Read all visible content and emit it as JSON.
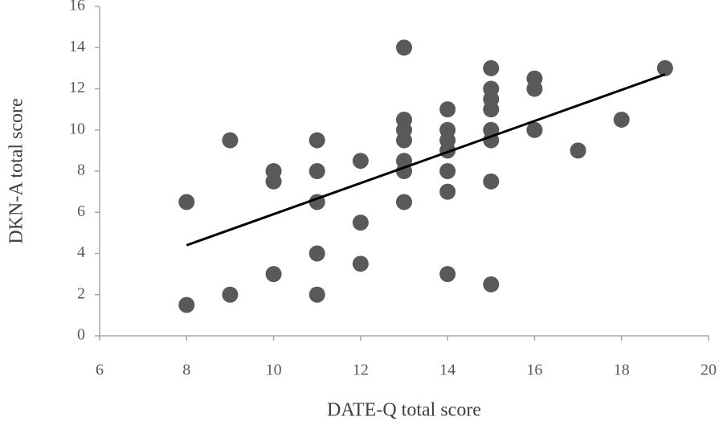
{
  "chart_data": {
    "type": "scatter",
    "x_label": "DATE-Q total score",
    "y_label": "DKN-A total score",
    "x": [
      8,
      8,
      9,
      9,
      10,
      10,
      10,
      11,
      11,
      11,
      11,
      11,
      12,
      12,
      12,
      13,
      13,
      13,
      13,
      13,
      13,
      13,
      14,
      14,
      14,
      14,
      14,
      14,
      14,
      15,
      15,
      15,
      15,
      15,
      15,
      15,
      15,
      16,
      16,
      16,
      17,
      18,
      19
    ],
    "y": [
      6.5,
      1.5,
      9.5,
      2,
      8,
      7.5,
      3,
      9.5,
      8,
      6.5,
      4,
      2,
      8.5,
      5.5,
      3.5,
      14,
      10.5,
      10,
      9.5,
      8.5,
      8,
      6.5,
      11,
      10,
      9.5,
      9,
      8,
      7,
      3,
      13,
      12,
      11.5,
      11,
      10,
      9.5,
      7.5,
      2.5,
      12.5,
      12,
      10,
      9,
      10.5,
      13
    ],
    "color": "#595959",
    "trendline": {
      "x": [
        8,
        19
      ],
      "y": [
        4.4,
        12.7
      ],
      "color": "#000000"
    },
    "xlim": [
      6,
      20
    ],
    "xticks": [
      6,
      8,
      10,
      12,
      14,
      16,
      18,
      20
    ],
    "ylim": [
      0,
      16
    ],
    "yticks": [
      0,
      2,
      4,
      6,
      8,
      10,
      12,
      14,
      16
    ],
    "grid": false
  }
}
